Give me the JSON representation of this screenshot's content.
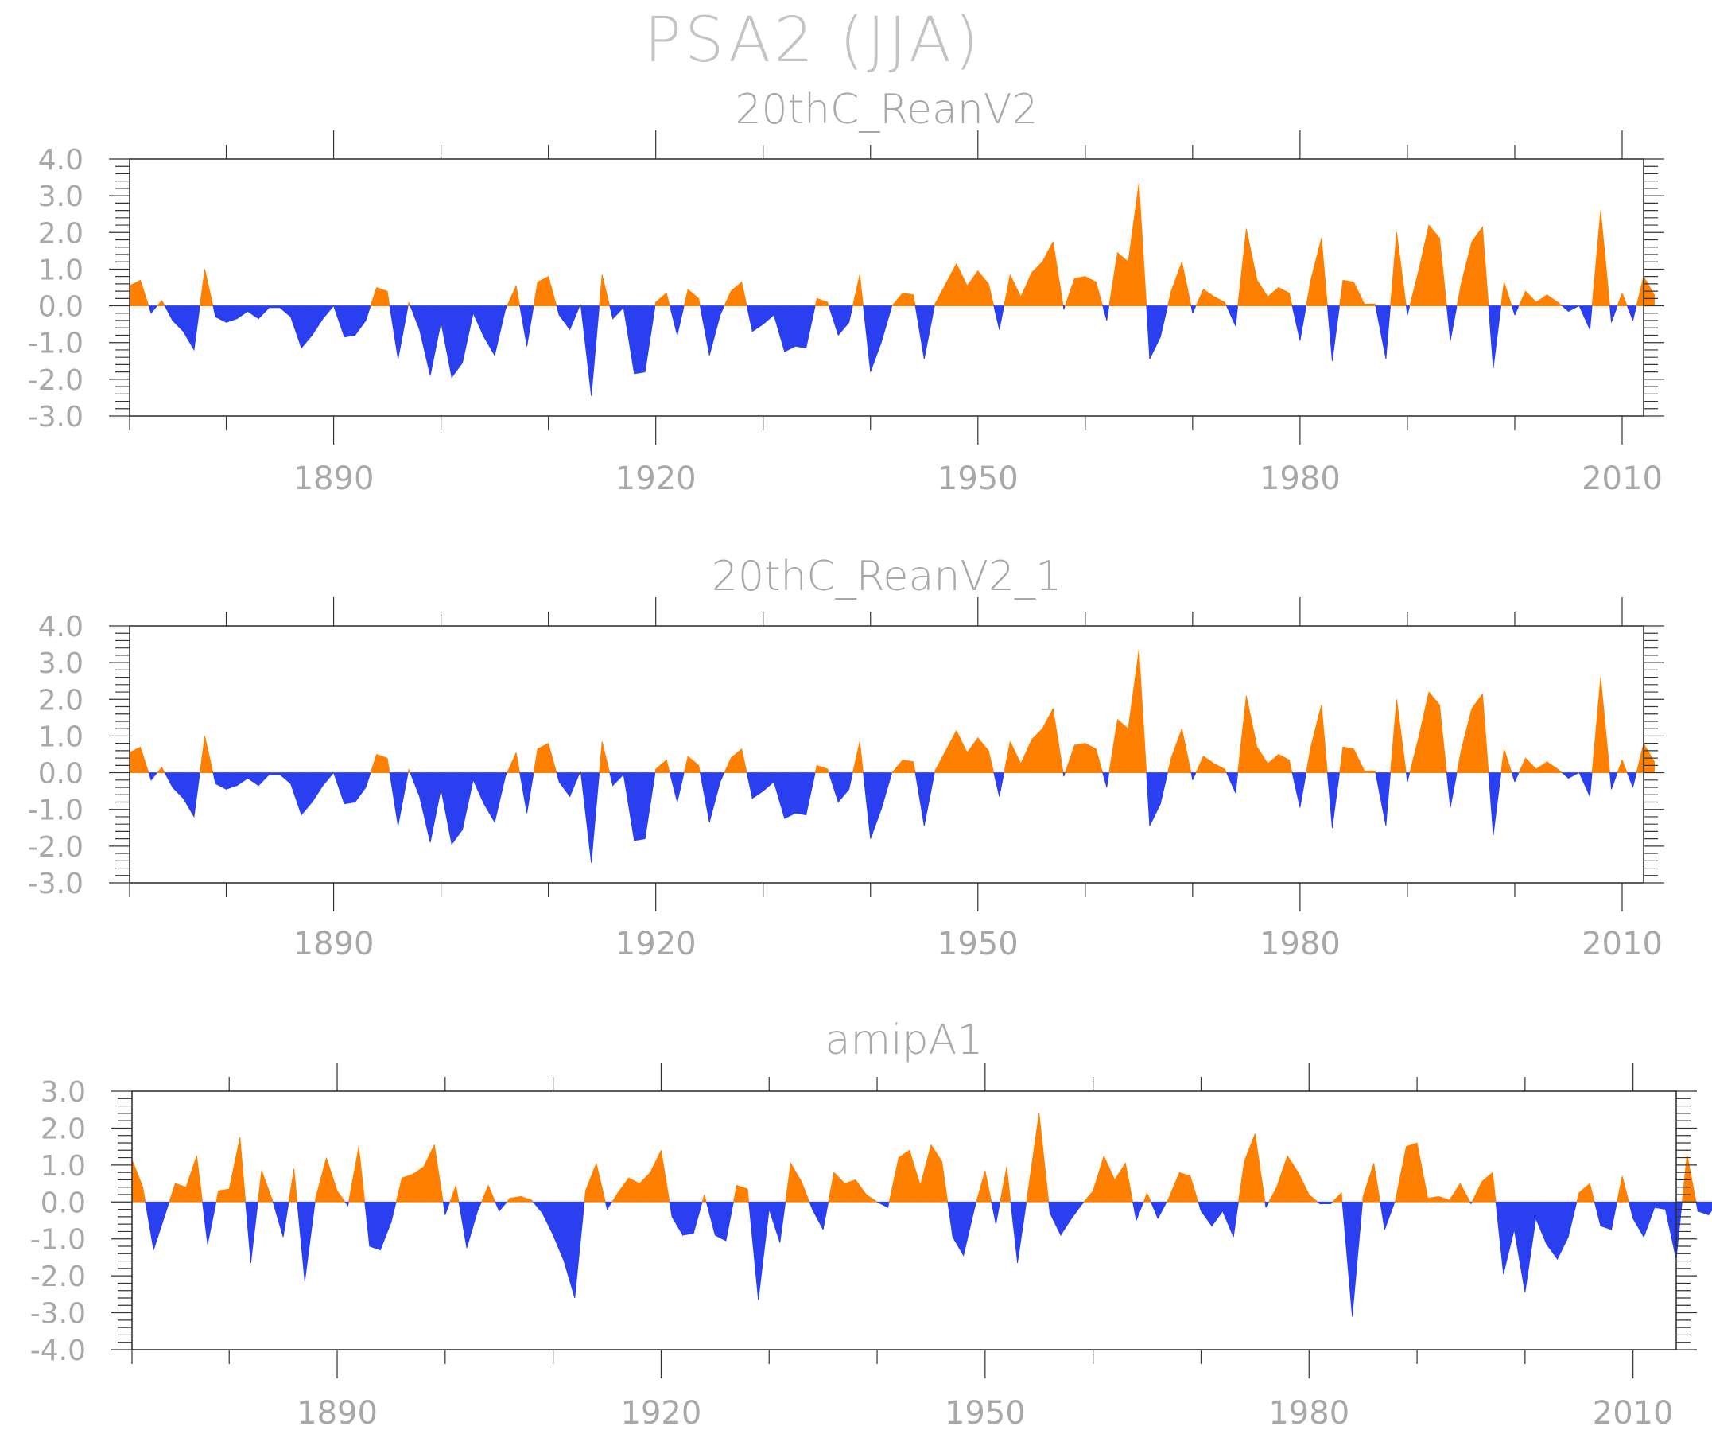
{
  "title": "PSA2 (JJA)",
  "colors": {
    "positive": "#ff8000",
    "negative": "#2a40f0",
    "axis": "#333333",
    "text": "#a8a8a8"
  },
  "chart_data": [
    {
      "type": "area",
      "title": "20thC_ReanV2",
      "xlabel": "",
      "ylabel": "",
      "xlim": [
        1871,
        2012
      ],
      "ylim": [
        -3,
        4
      ],
      "yticks": [
        4,
        3,
        2,
        1,
        0,
        -1,
        -2,
        -3
      ],
      "ytick_labels": [
        "4.0",
        "3.0",
        "2.0",
        "1.0",
        "0.0",
        "-1.0",
        "-2.0",
        "-3.0"
      ],
      "xticks": [
        1890,
        1920,
        1950,
        1980,
        2010
      ],
      "xtick_labels": [
        "1890",
        "1920",
        "1950",
        "1980",
        "2010"
      ],
      "x_start": 1871,
      "values": [
        0.55,
        0.7,
        -0.2,
        0.15,
        -0.4,
        -0.7,
        -1.2,
        1.0,
        -0.3,
        -0.45,
        -0.35,
        -0.15,
        -0.35,
        -0.05,
        -0.05,
        -0.3,
        -1.15,
        -0.8,
        -0.35,
        0.0,
        -0.85,
        -0.8,
        -0.4,
        0.5,
        0.4,
        -1.45,
        0.1,
        -0.65,
        -1.9,
        -0.45,
        -1.95,
        -1.55,
        -0.2,
        -0.85,
        -1.35,
        -0.1,
        0.55,
        -1.1,
        0.65,
        0.8,
        -0.25,
        -0.65,
        0.05,
        -2.45,
        0.85,
        -0.35,
        -0.05,
        -1.85,
        -1.8,
        0.1,
        0.35,
        -0.8,
        0.45,
        0.2,
        -1.35,
        -0.25,
        0.4,
        0.65,
        -0.7,
        -0.5,
        -0.25,
        -1.25,
        -1.1,
        -1.15,
        0.2,
        0.1,
        -0.8,
        -0.45,
        0.85,
        -1.8,
        -1.0,
        0.0,
        0.35,
        0.3,
        -1.45,
        0.05,
        0.6,
        1.15,
        0.55,
        0.95,
        0.6,
        -0.65,
        0.85,
        0.25,
        0.9,
        1.2,
        1.75,
        -0.1,
        0.75,
        0.8,
        0.65,
        -0.4,
        1.45,
        1.2,
        3.35,
        -1.45,
        -0.85,
        0.4,
        1.2,
        -0.2,
        0.45,
        0.25,
        0.1,
        -0.55,
        2.1,
        0.7,
        0.25,
        0.5,
        0.35,
        -0.95,
        0.7,
        1.85,
        -1.5,
        0.7,
        0.65,
        0.05,
        0.05,
        -1.45,
        2.0,
        -0.25,
        0.9,
        2.2,
        1.85,
        -0.95,
        0.6,
        1.75,
        2.15,
        -1.7,
        0.65,
        -0.25,
        0.4,
        0.1,
        0.3,
        0.1,
        -0.15,
        0.0,
        -0.65,
        2.6,
        -0.45,
        0.35,
        -0.4,
        0.8,
        0.3
      ]
    },
    {
      "type": "area",
      "title": "20thC_ReanV2_1",
      "xlabel": "",
      "ylabel": "",
      "xlim": [
        1871,
        2012
      ],
      "ylim": [
        -3,
        4
      ],
      "yticks": [
        4,
        3,
        2,
        1,
        0,
        -1,
        -2,
        -3
      ],
      "ytick_labels": [
        "4.0",
        "3.0",
        "2.0",
        "1.0",
        "0.0",
        "-1.0",
        "-2.0",
        "-3.0"
      ],
      "xticks": [
        1890,
        1920,
        1950,
        1980,
        2010
      ],
      "xtick_labels": [
        "1890",
        "1920",
        "1950",
        "1980",
        "2010"
      ],
      "x_start": 1871,
      "values": [
        0.55,
        0.7,
        -0.2,
        0.15,
        -0.4,
        -0.7,
        -1.2,
        1.0,
        -0.3,
        -0.45,
        -0.35,
        -0.15,
        -0.35,
        -0.05,
        -0.05,
        -0.3,
        -1.15,
        -0.8,
        -0.35,
        0.0,
        -0.85,
        -0.8,
        -0.4,
        0.5,
        0.4,
        -1.45,
        0.1,
        -0.65,
        -1.9,
        -0.45,
        -1.95,
        -1.55,
        -0.2,
        -0.85,
        -1.35,
        -0.1,
        0.55,
        -1.1,
        0.65,
        0.8,
        -0.25,
        -0.65,
        0.05,
        -2.45,
        0.85,
        -0.35,
        -0.05,
        -1.85,
        -1.8,
        0.1,
        0.35,
        -0.8,
        0.45,
        0.2,
        -1.35,
        -0.25,
        0.4,
        0.65,
        -0.7,
        -0.5,
        -0.25,
        -1.25,
        -1.1,
        -1.15,
        0.2,
        0.1,
        -0.8,
        -0.45,
        0.85,
        -1.8,
        -1.0,
        0.0,
        0.35,
        0.3,
        -1.45,
        0.05,
        0.6,
        1.15,
        0.55,
        0.95,
        0.6,
        -0.65,
        0.85,
        0.25,
        0.9,
        1.2,
        1.75,
        -0.1,
        0.75,
        0.8,
        0.65,
        -0.4,
        1.45,
        1.2,
        3.35,
        -1.45,
        -0.85,
        0.4,
        1.2,
        -0.2,
        0.45,
        0.25,
        0.1,
        -0.55,
        2.1,
        0.7,
        0.25,
        0.5,
        0.35,
        -0.95,
        0.7,
        1.85,
        -1.5,
        0.7,
        0.65,
        0.05,
        0.05,
        -1.45,
        2.0,
        -0.25,
        0.9,
        2.2,
        1.85,
        -0.95,
        0.6,
        1.75,
        2.15,
        -1.7,
        0.65,
        -0.25,
        0.4,
        0.1,
        0.3,
        0.1,
        -0.15,
        0.0,
        -0.65,
        2.6,
        -0.45,
        0.35,
        -0.4,
        0.8,
        0.3
      ]
    },
    {
      "type": "area",
      "title": "amipA1",
      "xlabel": "",
      "ylabel": "",
      "xlim": [
        1871,
        2014
      ],
      "ylim": [
        -4,
        3
      ],
      "yticks": [
        3,
        2,
        1,
        0,
        -1,
        -2,
        -3,
        -4
      ],
      "ytick_labels": [
        "3.0",
        "2.0",
        "1.0",
        "0.0",
        "-1.0",
        "-2.0",
        "-3.0",
        "-4.0"
      ],
      "xticks": [
        1890,
        1920,
        1950,
        1980,
        2010
      ],
      "xtick_labels": [
        "1890",
        "1920",
        "1950",
        "1980",
        "2010"
      ],
      "x_start": 1871,
      "values": [
        1.15,
        0.4,
        -1.3,
        -0.4,
        0.5,
        0.4,
        1.25,
        -1.15,
        0.3,
        0.35,
        1.75,
        -1.65,
        0.85,
        0.05,
        -0.95,
        0.9,
        -2.15,
        0.1,
        1.2,
        0.3,
        -0.1,
        1.5,
        -1.2,
        -1.3,
        -0.55,
        0.65,
        0.75,
        0.95,
        1.55,
        -0.35,
        0.45,
        -1.25,
        -0.25,
        0.45,
        -0.25,
        0.1,
        0.15,
        0.05,
        -0.3,
        -0.9,
        -1.6,
        -2.6,
        0.3,
        1.05,
        -0.2,
        0.25,
        0.65,
        0.5,
        0.8,
        1.4,
        -0.4,
        -0.9,
        -0.85,
        0.2,
        -0.9,
        -1.05,
        0.45,
        0.35,
        -2.65,
        -0.2,
        -1.1,
        1.05,
        0.55,
        -0.2,
        -0.75,
        0.8,
        0.5,
        0.6,
        0.2,
        0.0,
        -0.15,
        1.2,
        1.4,
        0.45,
        1.55,
        1.1,
        -0.95,
        -1.45,
        -0.2,
        0.85,
        -0.6,
        0.95,
        -1.65,
        0.35,
        2.4,
        -0.3,
        -0.9,
        -0.45,
        -0.05,
        0.3,
        1.25,
        0.6,
        1.05,
        -0.5,
        0.25,
        -0.45,
        0.1,
        0.8,
        0.7,
        -0.25,
        -0.65,
        -0.25,
        -0.95,
        1.1,
        1.85,
        -0.15,
        0.4,
        1.25,
        0.8,
        0.2,
        -0.05,
        -0.05,
        0.25,
        -3.1,
        0.15,
        1.05,
        -0.75,
        0.05,
        1.5,
        1.6,
        0.1,
        0.15,
        0.05,
        0.5,
        -0.05,
        0.55,
        0.8,
        -1.95,
        -0.75,
        -2.45,
        -0.45,
        -1.15,
        -1.55,
        -0.95,
        0.25,
        0.5,
        -0.65,
        -0.75,
        0.7,
        -0.45,
        -0.95,
        -0.15,
        -0.2,
        -1.55,
        1.3,
        -0.25,
        -0.35,
        0.05
      ]
    }
  ]
}
